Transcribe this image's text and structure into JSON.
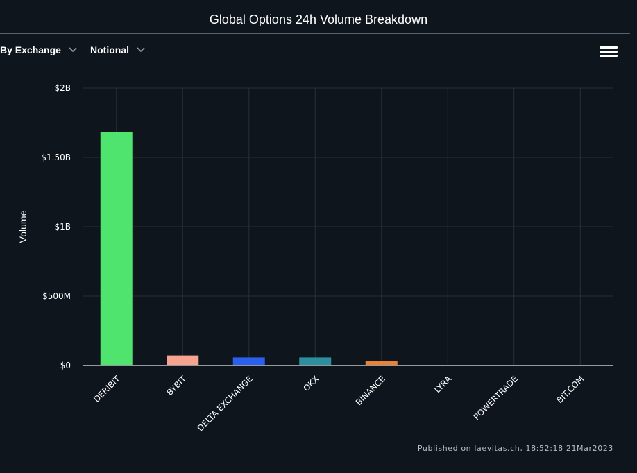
{
  "title": "Global Options 24h Volume Breakdown",
  "controls": {
    "group_by": "By Exchange",
    "metric": "Notional"
  },
  "menu_icon": "hamburger-menu-icon",
  "footer": "Published on laevitas.ch, 18:52:18 21Mar2023",
  "colors": {
    "background": "#0f151c",
    "grid": "#2a2f35",
    "axis": "#e6e6e6"
  },
  "chart_data": {
    "type": "bar",
    "title": "Global Options 24h Volume Breakdown",
    "xlabel": "",
    "ylabel": "Volume",
    "ylim": [
      0,
      2000000000
    ],
    "yticks": [
      {
        "value": 0,
        "label": "$0"
      },
      {
        "value": 500000000,
        "label": "$500M"
      },
      {
        "value": 1000000000,
        "label": "$1B"
      },
      {
        "value": 1500000000,
        "label": "$1.50B"
      },
      {
        "value": 2000000000,
        "label": "$2B"
      }
    ],
    "categories": [
      "DERIBIT",
      "BYBIT",
      "DELTA EXCHANGE",
      "OKX",
      "BINANCE",
      "LYRA",
      "POWERTRADE",
      "BIT.COM"
    ],
    "values": [
      1680000000,
      72000000,
      58000000,
      58000000,
      33000000,
      1500000,
      800000,
      500000
    ],
    "bar_colors": [
      "#4fe46d",
      "#f6a38f",
      "#2a5ff0",
      "#2b8fa0",
      "#ea8236",
      "#b04dd6",
      "#d9c94a",
      "#7fd3e8"
    ],
    "grid": true,
    "legend": "none"
  }
}
